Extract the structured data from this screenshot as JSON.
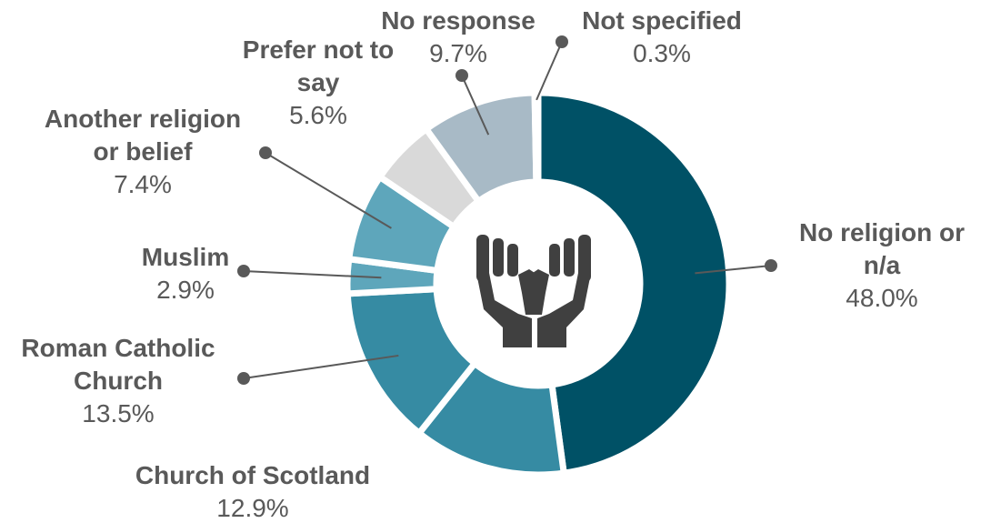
{
  "chart_data": {
    "type": "pie",
    "variant": "donut",
    "title": "",
    "center_icon": "praying-hands-icon",
    "series": [
      {
        "key": "no-religion",
        "label_lines": [
          "No religion or",
          "n/a"
        ],
        "percent_label": "48.0%",
        "value": 48.0,
        "color": "#005166"
      },
      {
        "key": "church-of-scotland",
        "label_lines": [
          "Church of Scotland"
        ],
        "percent_label": "12.9%",
        "value": 12.9,
        "color": "#368ba3"
      },
      {
        "key": "roman-catholic",
        "label_lines": [
          "Roman Catholic",
          "Church"
        ],
        "percent_label": "13.5%",
        "value": 13.5,
        "color": "#368ba3"
      },
      {
        "key": "muslim",
        "label_lines": [
          "Muslim"
        ],
        "percent_label": "2.9%",
        "value": 2.9,
        "color": "#5ea6bb"
      },
      {
        "key": "another-religion",
        "label_lines": [
          "Another religion",
          "or belief"
        ],
        "percent_label": "7.4%",
        "value": 7.4,
        "color": "#5ea6bb"
      },
      {
        "key": "prefer-not-to-say",
        "label_lines": [
          "Prefer not to",
          "say"
        ],
        "percent_label": "5.6%",
        "value": 5.6,
        "color": "#d9d9d9"
      },
      {
        "key": "no-response",
        "label_lines": [
          "No response"
        ],
        "percent_label": "9.7%",
        "value": 9.7,
        "color": "#a8bac6"
      },
      {
        "key": "not-specified",
        "label_lines": [
          "Not specified"
        ],
        "percent_label": "0.3%",
        "value": 0.3,
        "color": "#bfbfbf"
      }
    ],
    "colors": {
      "text": "#595959",
      "leader": "#595959",
      "icon": "#404040",
      "gap": "#ffffff"
    }
  }
}
